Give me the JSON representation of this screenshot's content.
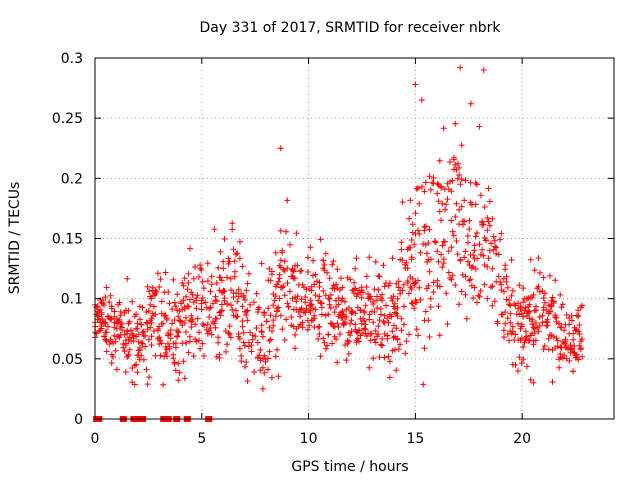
{
  "chart_data": {
    "type": "scatter",
    "title": "Day 331 of 2017, SRMTID for receiver nbrk",
    "xlabel": "GPS time / hours",
    "ylabel": "SRMTID / TECUs",
    "xlim": [
      0,
      24.3
    ],
    "ylim": [
      0,
      0.3
    ],
    "xticks": [
      0,
      5,
      10,
      15,
      20
    ],
    "xtick_labels": [
      "0",
      "5",
      "10",
      "15",
      "20"
    ],
    "yticks": [
      0,
      0.05,
      0.1,
      0.15,
      0.2,
      0.25,
      0.3
    ],
    "ytick_labels": [
      "0",
      "0.05",
      "0.1",
      "0.15",
      "0.2",
      "0.25",
      "0.3"
    ],
    "grid": true,
    "marker": "plus",
    "series_color": "#ff0000",
    "profile_hours": [
      0,
      1,
      2,
      3,
      4,
      5,
      6,
      7,
      8,
      9,
      10,
      11,
      12,
      13,
      14,
      15,
      16,
      17,
      18,
      19,
      20,
      21,
      22,
      22.8
    ],
    "profile_mean": [
      0.08,
      0.075,
      0.07,
      0.08,
      0.075,
      0.09,
      0.1,
      0.085,
      0.07,
      0.11,
      0.1,
      0.095,
      0.09,
      0.085,
      0.09,
      0.12,
      0.15,
      0.165,
      0.15,
      0.11,
      0.075,
      0.09,
      0.065,
      0.07
    ],
    "profile_spread": [
      0.015,
      0.02,
      0.025,
      0.03,
      0.03,
      0.035,
      0.035,
      0.035,
      0.035,
      0.04,
      0.03,
      0.03,
      0.03,
      0.03,
      0.035,
      0.05,
      0.06,
      0.06,
      0.05,
      0.035,
      0.025,
      0.03,
      0.02,
      0.02
    ],
    "sample_step_hours": 0.012,
    "zero_values_x": [
      0.05,
      0.1,
      0.15,
      0.2,
      1.3,
      1.35,
      1.8,
      1.85,
      1.9,
      1.95,
      2.0,
      2.05,
      2.1,
      2.15,
      2.2,
      2.25,
      3.2,
      3.25,
      3.3,
      3.35,
      3.4,
      3.45,
      3.8,
      3.85,
      4.3,
      4.35,
      5.3,
      5.35
    ],
    "notable_peaks": [
      {
        "x": 8.7,
        "y": 0.225
      },
      {
        "x": 15.0,
        "y": 0.278
      },
      {
        "x": 15.3,
        "y": 0.265
      },
      {
        "x": 17.1,
        "y": 0.292
      },
      {
        "x": 18.2,
        "y": 0.29
      },
      {
        "x": 17.6,
        "y": 0.262
      },
      {
        "x": 18.0,
        "y": 0.243
      }
    ]
  }
}
